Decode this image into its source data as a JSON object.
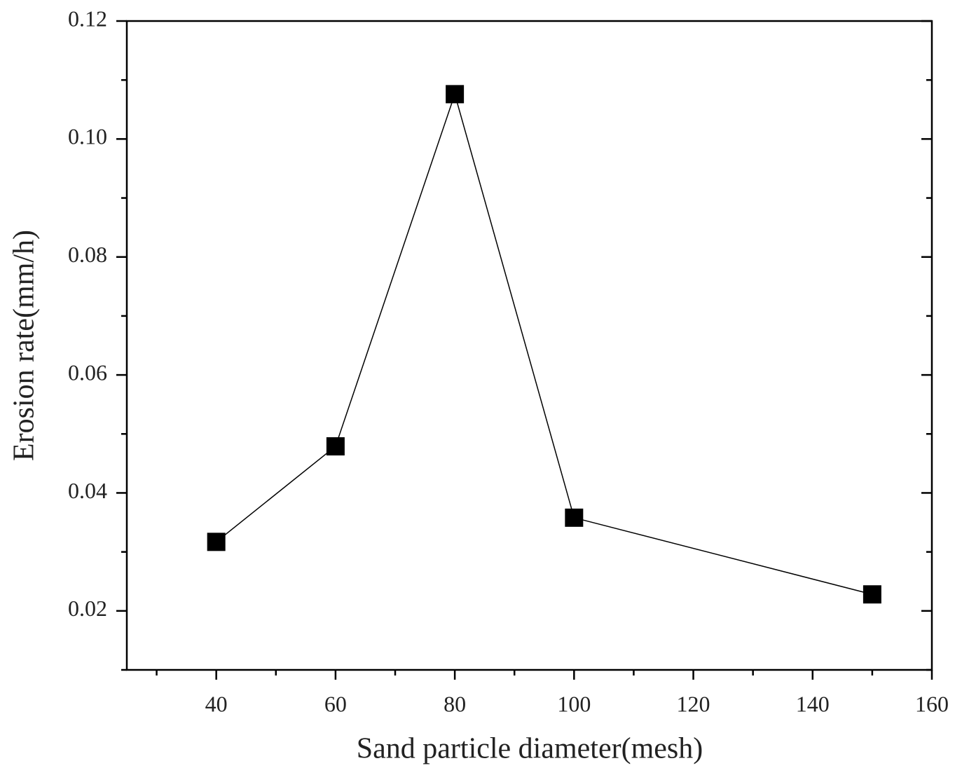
{
  "chart_data": {
    "type": "line",
    "x_label": "Sand particle diameter(mesh)",
    "y_label": "Erosion rate(mm/h)",
    "x": [
      40,
      60,
      80,
      100,
      150
    ],
    "series": [
      {
        "color": "#000000",
        "values": [
          0.0317,
          0.0479,
          0.1076,
          0.0358,
          0.0228
        ]
      }
    ],
    "xlim": [
      25,
      160
    ],
    "xticks": [
      40,
      60,
      80,
      100,
      120,
      140,
      160
    ],
    "ylim": [
      0.01,
      0.12
    ],
    "yticks": [
      0.02,
      0.04,
      0.06,
      0.08,
      {
        "value": 0.1,
        "label": "0.10"
      },
      0.12
    ],
    "grid": false
  }
}
